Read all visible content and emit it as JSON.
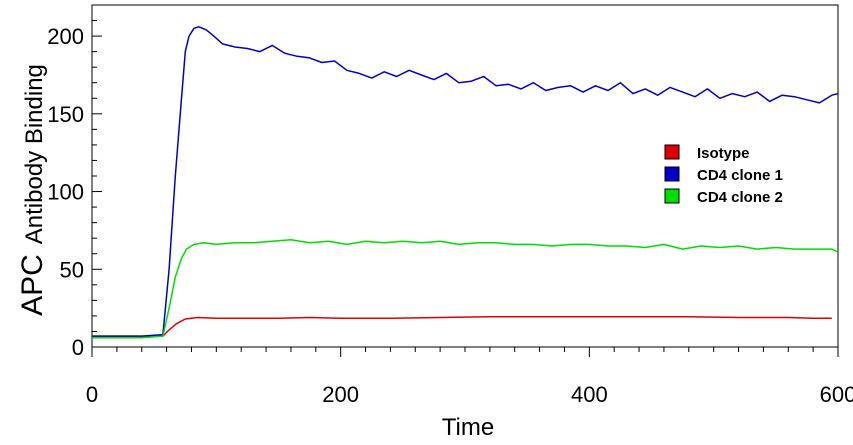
{
  "chart_data": {
    "type": "line",
    "title": "",
    "xlabel": "Time",
    "ylabel_prefix": "APC",
    "ylabel_main": "Antibody Binding",
    "xlim": [
      0,
      600
    ],
    "ylim": [
      0,
      220
    ],
    "x_ticks": [
      0,
      200,
      400,
      600
    ],
    "x_tick_labels": [
      "0",
      "200",
      "400",
      "600"
    ],
    "y_ticks": [
      0,
      50,
      100,
      150,
      200
    ],
    "y_tick_labels": [
      "0",
      "50",
      "100",
      "150",
      "200"
    ],
    "grid": false,
    "legend_position": "right",
    "series": [
      {
        "name": "Isotype",
        "color": "#dd0000",
        "x": [
          0,
          30,
          57,
          62,
          68,
          75,
          85,
          100,
          120,
          150,
          175,
          200,
          240,
          280,
          320,
          360,
          400,
          440,
          480,
          520,
          560,
          580,
          595
        ],
        "y": [
          7,
          7,
          7,
          11,
          15,
          18,
          19,
          18.5,
          18.5,
          18.5,
          19,
          18.5,
          18.5,
          19,
          19.5,
          19.5,
          19.5,
          19.5,
          19.5,
          19,
          19,
          18.5,
          18.5
        ]
      },
      {
        "name": "CD4 clone 1",
        "color": "#0000cc",
        "x": [
          0,
          20,
          40,
          57,
          62,
          67,
          72,
          75,
          78,
          82,
          86,
          92,
          98,
          105,
          115,
          125,
          135,
          145,
          155,
          165,
          175,
          185,
          195,
          205,
          215,
          225,
          235,
          245,
          255,
          265,
          275,
          285,
          295,
          305,
          315,
          325,
          335,
          345,
          355,
          365,
          375,
          385,
          395,
          405,
          415,
          425,
          435,
          445,
          455,
          465,
          475,
          485,
          495,
          505,
          515,
          525,
          535,
          545,
          555,
          565,
          575,
          585,
          595,
          600
        ],
        "y": [
          7,
          7,
          7,
          8,
          50,
          110,
          160,
          190,
          200,
          205,
          206,
          204,
          200,
          195,
          193,
          192,
          190,
          194,
          189,
          187,
          186,
          183,
          184,
          178,
          176,
          173,
          177,
          174,
          178,
          175,
          172,
          176,
          170,
          171,
          174,
          168,
          169,
          166,
          170,
          165,
          167,
          168,
          164,
          168,
          165,
          170,
          163,
          166,
          162,
          167,
          164,
          161,
          166,
          160,
          163,
          161,
          164,
          158,
          162,
          161,
          159,
          157,
          162,
          163
        ]
      },
      {
        "name": "CD4 clone 2",
        "color": "#00dd00",
        "x": [
          0,
          20,
          40,
          57,
          62,
          67,
          72,
          76,
          82,
          90,
          100,
          115,
          130,
          145,
          160,
          175,
          190,
          205,
          220,
          235,
          250,
          265,
          280,
          295,
          310,
          325,
          340,
          355,
          370,
          385,
          400,
          415,
          430,
          445,
          460,
          475,
          490,
          505,
          520,
          535,
          550,
          565,
          580,
          595,
          600
        ],
        "y": [
          6,
          6,
          6,
          7,
          25,
          45,
          57,
          63,
          66,
          67,
          66,
          67,
          67,
          68,
          69,
          67,
          68,
          66,
          68,
          67,
          68,
          67,
          68,
          66,
          67,
          67,
          66,
          66,
          65,
          66,
          66,
          65,
          65,
          64,
          66,
          63,
          65,
          64,
          65,
          63,
          64,
          63,
          63,
          63,
          61
        ]
      }
    ]
  }
}
